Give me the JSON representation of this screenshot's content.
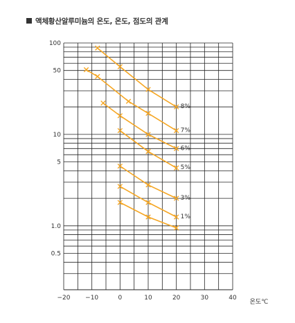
{
  "title": "액체황산알루미늄의 온도, 온도, 점도의 관계",
  "chart_data": {
    "type": "line",
    "title": "액체황산알루미늄의 온도, 온도, 점도의 관계",
    "xlabel": "온도℃",
    "ylabel": "",
    "x_ticks": [
      -20,
      -10,
      0,
      10,
      20,
      30,
      40
    ],
    "x_tick_labels": [
      "−20",
      "−10",
      "0",
      "10",
      "20",
      "30",
      "40"
    ],
    "xlim": [
      -20,
      40
    ],
    "y_scale": "log",
    "ylim": [
      0.2,
      100
    ],
    "y_ticks": [
      0.5,
      1.0,
      5,
      10,
      50,
      100
    ],
    "y_tick_labels": [
      "0.5",
      "1.0",
      "5",
      "10",
      "50",
      "100"
    ],
    "grid": true,
    "line_color": "#f5a623",
    "marker": "x",
    "series": [
      {
        "name": "8%",
        "x": [
          -8,
          0,
          10,
          20
        ],
        "y": [
          88,
          55,
          31,
          20
        ]
      },
      {
        "name": "7%",
        "x": [
          -12,
          -8,
          3,
          10,
          20
        ],
        "y": [
          51,
          43,
          23,
          17,
          11
        ]
      },
      {
        "name": "6%",
        "x": [
          -6,
          0,
          10,
          20
        ],
        "y": [
          22,
          16,
          10,
          7
        ]
      },
      {
        "name": "5%",
        "x": [
          0,
          10,
          20
        ],
        "y": [
          11,
          6.5,
          4.3
        ]
      },
      {
        "name": "3%",
        "x": [
          0,
          10,
          20
        ],
        "y": [
          4.5,
          2.8,
          2.0
        ]
      },
      {
        "name": "1%",
        "x": [
          0,
          10,
          20
        ],
        "y": [
          2.7,
          1.8,
          1.25
        ]
      },
      {
        "name": "",
        "x": [
          0,
          10,
          20
        ],
        "y": [
          1.8,
          1.25,
          0.95
        ]
      }
    ]
  }
}
